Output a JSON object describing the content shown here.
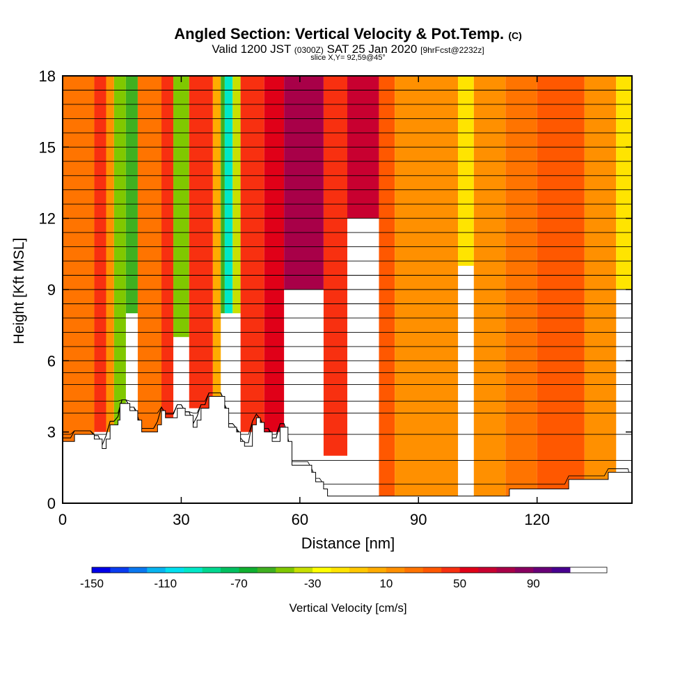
{
  "title": "Angled Section: Vertical Velocity & Pot.Temp.",
  "title_suffix": "(C)",
  "subtitle_a": "Valid 1200 JST",
  "subtitle_b": "(0300Z)",
  "subtitle_c": "SAT 25 Jan 2020",
  "subtitle_d": "[9hrFcst@2232z]",
  "slice_label": "slice X,Y= 92,59@45°",
  "chart_data": {
    "type": "heatmap",
    "title": "Angled Section: Vertical Velocity & Pot.Temp.",
    "xlabel": "Distance [nm]",
    "ylabel": "Height [Kft MSL]",
    "xlim": [
      0,
      144
    ],
    "ylim": [
      0,
      18
    ],
    "x_ticks": [
      0,
      30,
      60,
      90,
      120
    ],
    "y_ticks": [
      0,
      3,
      6,
      9,
      12,
      15,
      18
    ],
    "colorbar": {
      "label": "Vertical Velocity [cm/s]",
      "tick_labels": [
        "-150",
        "-110",
        "-70",
        "-30",
        "10",
        "50",
        "90"
      ],
      "tick_values": [
        -150,
        -110,
        -70,
        -30,
        10,
        50,
        90
      ],
      "range": [
        -150,
        130
      ],
      "step": 10,
      "colors": [
        "#0000e8",
        "#0a3cf0",
        "#0a78f0",
        "#08b4f0",
        "#00e0f0",
        "#00e8c8",
        "#00d890",
        "#00c060",
        "#10b030",
        "#40b020",
        "#80c800",
        "#c8e000",
        "#ffff00",
        "#ffe400",
        "#ffc800",
        "#ffac00",
        "#ff9000",
        "#ff7400",
        "#ff5800",
        "#f83010",
        "#e00018",
        "#c80030",
        "#a80048",
        "#880060",
        "#680078",
        "#480090"
      ]
    },
    "terrain_kft": [
      [
        0,
        2.6
      ],
      [
        3,
        2.6
      ],
      [
        3,
        2.9
      ],
      [
        8,
        2.9
      ],
      [
        8,
        2.7
      ],
      [
        10,
        2.7
      ],
      [
        10,
        2.3
      ],
      [
        11,
        2.3
      ],
      [
        11,
        2.7
      ],
      [
        12,
        2.7
      ],
      [
        12,
        3.3
      ],
      [
        14,
        3.3
      ],
      [
        14,
        3.5
      ],
      [
        14.5,
        3.5
      ],
      [
        14.5,
        4.2
      ],
      [
        17,
        4.2
      ],
      [
        17,
        3.9
      ],
      [
        19,
        3.9
      ],
      [
        19,
        3.5
      ],
      [
        20,
        3.5
      ],
      [
        20,
        3.0
      ],
      [
        24,
        3.0
      ],
      [
        24,
        3.3
      ],
      [
        25,
        3.3
      ],
      [
        25,
        3.9
      ],
      [
        26,
        3.9
      ],
      [
        26,
        3.6
      ],
      [
        29,
        3.6
      ],
      [
        29,
        4.0
      ],
      [
        31,
        4.0
      ],
      [
        31,
        3.7
      ],
      [
        33,
        3.7
      ],
      [
        33,
        3.2
      ],
      [
        34,
        3.2
      ],
      [
        34,
        3.5
      ],
      [
        35,
        3.5
      ],
      [
        35,
        4.0
      ],
      [
        37,
        4.0
      ],
      [
        37,
        4.5
      ],
      [
        41,
        4.5
      ],
      [
        41,
        4.0
      ],
      [
        42,
        4.0
      ],
      [
        42,
        3.2
      ],
      [
        44,
        3.2
      ],
      [
        44,
        3.0
      ],
      [
        45,
        3.0
      ],
      [
        45,
        2.6
      ],
      [
        46,
        2.6
      ],
      [
        46,
        2.4
      ],
      [
        48,
        2.4
      ],
      [
        48,
        3.3
      ],
      [
        49,
        3.3
      ],
      [
        49,
        3.6
      ],
      [
        50,
        3.6
      ],
      [
        50,
        3.4
      ],
      [
        51,
        3.4
      ],
      [
        51,
        3.0
      ],
      [
        53,
        3.0
      ],
      [
        53,
        2.6
      ],
      [
        55,
        2.6
      ],
      [
        55,
        3.2
      ],
      [
        57,
        3.2
      ],
      [
        57,
        2.6
      ],
      [
        58,
        2.6
      ],
      [
        58,
        1.6
      ],
      [
        63,
        1.6
      ],
      [
        63,
        1.3
      ],
      [
        64,
        1.3
      ],
      [
        64,
        0.9
      ],
      [
        66,
        0.9
      ],
      [
        66,
        0.6
      ],
      [
        67,
        0.6
      ],
      [
        67,
        0.3
      ],
      [
        113,
        0.3
      ],
      [
        113,
        0.6
      ],
      [
        128,
        0.6
      ],
      [
        128,
        1.0
      ],
      [
        138,
        1.0
      ],
      [
        138,
        1.3
      ],
      [
        144,
        1.3
      ],
      [
        144,
        0
      ]
    ],
    "velocity_cells": [
      {
        "x": [
          0,
          8
        ],
        "y": [
          0,
          18
        ],
        "value": 20
      },
      {
        "x": [
          8,
          11
        ],
        "y": [
          3,
          18
        ],
        "value": 40
      },
      {
        "x": [
          11,
          13
        ],
        "y": [
          3,
          18
        ],
        "value": 10
      },
      {
        "x": [
          13,
          16
        ],
        "y": [
          3,
          18
        ],
        "value": -50
      },
      {
        "x": [
          16,
          19
        ],
        "y": [
          8,
          18
        ],
        "value": -60
      },
      {
        "x": [
          19,
          25
        ],
        "y": [
          3,
          18
        ],
        "value": 20
      },
      {
        "x": [
          25,
          28
        ],
        "y": [
          3,
          18
        ],
        "value": 40
      },
      {
        "x": [
          28,
          32
        ],
        "y": [
          7,
          18
        ],
        "value": -50
      },
      {
        "x": [
          32,
          38
        ],
        "y": [
          4,
          18
        ],
        "value": 40
      },
      {
        "x": [
          38,
          40
        ],
        "y": [
          4,
          18
        ],
        "value": 0
      },
      {
        "x": [
          40,
          41
        ],
        "y": [
          8,
          18
        ],
        "value": -60
      },
      {
        "x": [
          41,
          43
        ],
        "y": [
          8,
          18
        ],
        "value": -100
      },
      {
        "x": [
          43,
          45
        ],
        "y": [
          8,
          18
        ],
        "value": -40
      },
      {
        "x": [
          45,
          51
        ],
        "y": [
          3,
          18
        ],
        "value": 40
      },
      {
        "x": [
          51,
          56
        ],
        "y": [
          3,
          18
        ],
        "value": 50
      },
      {
        "x": [
          56,
          66
        ],
        "y": [
          9,
          18
        ],
        "value": 70
      },
      {
        "x": [
          66,
          72
        ],
        "y": [
          2,
          18
        ],
        "value": 40
      },
      {
        "x": [
          72,
          80
        ],
        "y": [
          12,
          18
        ],
        "value": 60
      },
      {
        "x": [
          80,
          84
        ],
        "y": [
          0,
          18
        ],
        "value": 30
      },
      {
        "x": [
          84,
          100
        ],
        "y": [
          0,
          18
        ],
        "value": 10
      },
      {
        "x": [
          100,
          104
        ],
        "y": [
          10,
          18
        ],
        "value": -20
      },
      {
        "x": [
          104,
          112
        ],
        "y": [
          0,
          18
        ],
        "value": 10
      },
      {
        "x": [
          112,
          120
        ],
        "y": [
          0,
          18
        ],
        "value": 20
      },
      {
        "x": [
          120,
          132
        ],
        "y": [
          0,
          18
        ],
        "value": 30
      },
      {
        "x": [
          132,
          140
        ],
        "y": [
          0,
          18
        ],
        "value": 10
      },
      {
        "x": [
          140,
          144
        ],
        "y": [
          9,
          18
        ],
        "value": -20
      }
    ],
    "theta_contour_heights_kft": [
      0.8,
      1.8,
      2.9,
      3.8,
      4.3,
      5.0,
      5.5,
      6.0,
      6.6,
      7.2,
      7.8,
      8.4,
      9.0,
      9.6,
      10.2,
      10.8,
      11.4,
      12.0,
      12.6,
      13.2,
      13.8,
      14.4,
      15.0,
      15.6,
      16.2,
      16.8,
      17.4
    ]
  }
}
